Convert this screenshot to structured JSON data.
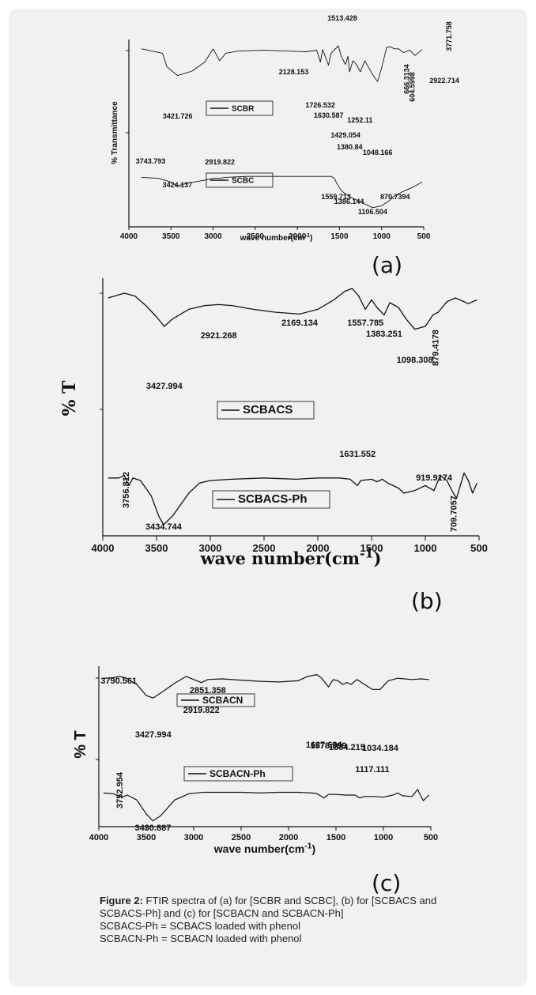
{
  "colors": {
    "frame": "#f0f1f2",
    "line": "#111111"
  },
  "chart_data": [
    {
      "type": "line",
      "panel_label": "(a)",
      "xlabel": "wave number(cm",
      "xlabel_sup": "-1",
      "xlabel_end": ")",
      "ylabel": "% Transmittance",
      "xlim": [
        4000,
        500
      ],
      "xticks": [
        "4000",
        "3500",
        "3000",
        "2500",
        "2000",
        "1500",
        "1000",
        "500"
      ],
      "series": [
        {
          "name": "SCBR",
          "points": [
            [
              3850,
              0.04
            ],
            [
              3600,
              0.1
            ],
            [
              3550,
              0.28
            ],
            [
              3421.7,
              0.4
            ],
            [
              3250,
              0.34
            ],
            [
              3100,
              0.22
            ],
            [
              3000,
              0.04
            ],
            [
              2922.7,
              0.2
            ],
            [
              2850,
              0.1
            ],
            [
              2700,
              0.07
            ],
            [
              2400,
              0.06
            ],
            [
              2128,
              0.07
            ],
            [
              1900,
              0.08
            ],
            [
              1770,
              0.06
            ],
            [
              1726.5,
              0.22
            ],
            [
              1700,
              0.05
            ],
            [
              1630.6,
              0.26
            ],
            [
              1600,
              0.1
            ],
            [
              1513,
              0.0
            ],
            [
              1480,
              0.14
            ],
            [
              1429.1,
              0.25
            ],
            [
              1400,
              0.14
            ],
            [
              1380.8,
              0.35
            ],
            [
              1340,
              0.2
            ],
            [
              1300,
              0.25
            ],
            [
              1252.1,
              0.35
            ],
            [
              1200,
              0.2
            ],
            [
              1150,
              0.3
            ],
            [
              1100,
              0.4
            ],
            [
              1048.2,
              0.48
            ],
            [
              1000,
              0.3
            ],
            [
              940,
              0.02
            ],
            [
              900,
              0.01
            ],
            [
              850,
              0.04
            ],
            [
              800,
              0.04
            ],
            [
              740,
              0.09
            ],
            [
              666,
              0.06
            ],
            [
              604.6,
              0.13
            ],
            [
              520,
              0.05
            ]
          ]
        },
        {
          "name": "SCBC",
          "points": [
            [
              3850,
              0.52
            ],
            [
              3650,
              0.53
            ],
            [
              3500,
              0.57
            ],
            [
              3424,
              0.61
            ],
            [
              3300,
              0.58
            ],
            [
              3100,
              0.55
            ],
            [
              2990,
              0.53
            ],
            [
              2919.8,
              0.53
            ],
            [
              2850,
              0.52
            ],
            [
              2600,
              0.51
            ],
            [
              2200,
              0.51
            ],
            [
              1800,
              0.51
            ],
            [
              1600,
              0.51
            ],
            [
              1559.7,
              0.53
            ],
            [
              1540,
              0.57
            ],
            [
              1480,
              0.66
            ],
            [
              1420,
              0.7
            ],
            [
              1386,
              0.72
            ],
            [
              1250,
              0.78
            ],
            [
              1106.5,
              0.84
            ],
            [
              1000,
              0.82
            ],
            [
              900,
              0.76
            ],
            [
              870.7,
              0.73
            ],
            [
              750,
              0.67
            ],
            [
              620,
              0.62
            ],
            [
              520,
              0.57
            ]
          ]
        }
      ],
      "annotations": [
        "3771.758",
        "2922.714",
        "2128.153",
        "1513.428",
        "1726.532",
        "1630.587",
        "1429.054",
        "1380.84",
        "1252.11",
        "1048.166",
        "666.3134",
        "604.5998",
        "3421.726",
        "3743.793",
        "3424.137",
        "2919.822",
        "1559.713",
        "1386.144",
        "1106.504",
        "870.7394"
      ]
    },
    {
      "type": "line",
      "panel_label": "(b)",
      "xlabel": "wave number(cm",
      "xlabel_sup": "-1",
      "xlabel_end": ")",
      "ylabel": "% T",
      "xlim": [
        4000,
        500
      ],
      "xticks": [
        "4000",
        "3500",
        "3000",
        "2500",
        "2000",
        "1500",
        "1000",
        "500"
      ],
      "series": [
        {
          "name": "SCBACS",
          "points": [
            [
              3950,
              0.1
            ],
            [
              3800,
              0.05
            ],
            [
              3700,
              0.08
            ],
            [
              3600,
              0.18
            ],
            [
              3500,
              0.3
            ],
            [
              3428,
              0.4
            ],
            [
              3350,
              0.32
            ],
            [
              3200,
              0.22
            ],
            [
              3050,
              0.18
            ],
            [
              2921.3,
              0.17
            ],
            [
              2800,
              0.18
            ],
            [
              2600,
              0.22
            ],
            [
              2400,
              0.25
            ],
            [
              2169.1,
              0.27
            ],
            [
              2000,
              0.22
            ],
            [
              1850,
              0.12
            ],
            [
              1750,
              0.03
            ],
            [
              1680,
              0.0
            ],
            [
              1620,
              0.08
            ],
            [
              1557.8,
              0.22
            ],
            [
              1500,
              0.12
            ],
            [
              1450,
              0.2
            ],
            [
              1383.3,
              0.28
            ],
            [
              1330,
              0.15
            ],
            [
              1250,
              0.2
            ],
            [
              1180,
              0.32
            ],
            [
              1098.3,
              0.43
            ],
            [
              1000,
              0.4
            ],
            [
              930,
              0.28
            ],
            [
              879.4,
              0.25
            ],
            [
              800,
              0.14
            ],
            [
              720,
              0.1
            ],
            [
              600,
              0.16
            ],
            [
              520,
              0.12
            ]
          ]
        },
        {
          "name": "SCBACS-Ph",
          "points": [
            [
              3950,
              0.58
            ],
            [
              3850,
              0.58
            ],
            [
              3800,
              0.56
            ],
            [
              3756.8,
              0.64
            ],
            [
              3720,
              0.58
            ],
            [
              3650,
              0.6
            ],
            [
              3550,
              0.72
            ],
            [
              3480,
              0.88
            ],
            [
              3434.7,
              0.95
            ],
            [
              3350,
              0.88
            ],
            [
              3200,
              0.7
            ],
            [
              3100,
              0.62
            ],
            [
              3000,
              0.6
            ],
            [
              2800,
              0.59
            ],
            [
              2500,
              0.58
            ],
            [
              2200,
              0.59
            ],
            [
              2000,
              0.58
            ],
            [
              1800,
              0.58
            ],
            [
              1700,
              0.59
            ],
            [
              1631.6,
              0.64
            ],
            [
              1600,
              0.6
            ],
            [
              1500,
              0.59
            ],
            [
              1450,
              0.61
            ],
            [
              1400,
              0.59
            ],
            [
              1350,
              0.62
            ],
            [
              1300,
              0.64
            ],
            [
              1250,
              0.66
            ],
            [
              1200,
              0.7
            ],
            [
              1100,
              0.68
            ],
            [
              1000,
              0.64
            ],
            [
              919.9,
              0.68
            ],
            [
              860,
              0.56
            ],
            [
              800,
              0.6
            ],
            [
              740,
              0.7
            ],
            [
              709.7,
              0.74
            ],
            [
              640,
              0.54
            ],
            [
              600,
              0.6
            ],
            [
              560,
              0.7
            ],
            [
              520,
              0.62
            ]
          ]
        }
      ],
      "annotations": [
        "3427.994",
        "2921.268",
        "2169.134",
        "1557.785",
        "1383.251",
        "1098.308",
        "879.4178",
        "3756.812",
        "3434.744",
        "1631.552",
        "919.9174",
        "709.7057"
      ]
    },
    {
      "type": "line",
      "panel_label": "(c)",
      "xlabel": "wave number(cm",
      "xlabel_sup": "-1",
      "xlabel_end": ")",
      "ylabel": "% T",
      "xlim": [
        4000,
        500
      ],
      "xticks": [
        "4000",
        "3500",
        "3000",
        "2500",
        "2000",
        "1500",
        "1000",
        "500"
      ],
      "series": [
        {
          "name": "SCBACN",
          "points": [
            [
              3950,
              0.08
            ],
            [
              3850,
              0.07
            ],
            [
              3790.6,
              0.05
            ],
            [
              3720,
              0.07
            ],
            [
              3600,
              0.18
            ],
            [
              3500,
              0.36
            ],
            [
              3428,
              0.4
            ],
            [
              3350,
              0.32
            ],
            [
              3200,
              0.16
            ],
            [
              3080,
              0.05
            ],
            [
              3000,
              0.1
            ],
            [
              2919.8,
              0.15
            ],
            [
              2851.4,
              0.1
            ],
            [
              2700,
              0.09
            ],
            [
              2500,
              0.11
            ],
            [
              2300,
              0.13
            ],
            [
              2100,
              0.14
            ],
            [
              1900,
              0.12
            ],
            [
              1800,
              0.05
            ],
            [
              1700,
              0.02
            ],
            [
              1650,
              0.08
            ],
            [
              1579,
              0.22
            ],
            [
              1530,
              0.1
            ],
            [
              1480,
              0.12
            ],
            [
              1430,
              0.18
            ],
            [
              1384.2,
              0.15
            ],
            [
              1340,
              0.18
            ],
            [
              1280,
              0.1
            ],
            [
              1200,
              0.18
            ],
            [
              1117.1,
              0.26
            ],
            [
              1034.2,
              0.26
            ],
            [
              950,
              0.12
            ],
            [
              850,
              0.08
            ],
            [
              700,
              0.1
            ],
            [
              600,
              0.09
            ],
            [
              520,
              0.1
            ]
          ]
        },
        {
          "name": "SCBACN-Ph",
          "points": [
            [
              3950,
              0.55
            ],
            [
              3850,
              0.56
            ],
            [
              3752.9,
              0.61
            ],
            [
              3700,
              0.58
            ],
            [
              3600,
              0.65
            ],
            [
              3500,
              0.85
            ],
            [
              3430.9,
              0.95
            ],
            [
              3350,
              0.88
            ],
            [
              3200,
              0.65
            ],
            [
              3050,
              0.56
            ],
            [
              2900,
              0.54
            ],
            [
              2700,
              0.54
            ],
            [
              2500,
              0.54
            ],
            [
              2300,
              0.55
            ],
            [
              2100,
              0.54
            ],
            [
              1900,
              0.54
            ],
            [
              1750,
              0.55
            ],
            [
              1700,
              0.56
            ],
            [
              1627.7,
              0.62
            ],
            [
              1580,
              0.57
            ],
            [
              1500,
              0.57
            ],
            [
              1400,
              0.58
            ],
            [
              1300,
              0.58
            ],
            [
              1250,
              0.62
            ],
            [
              1200,
              0.6
            ],
            [
              1100,
              0.6
            ],
            [
              1000,
              0.61
            ],
            [
              900,
              0.58
            ],
            [
              850,
              0.55
            ],
            [
              800,
              0.59
            ],
            [
              700,
              0.6
            ],
            [
              640,
              0.5
            ],
            [
              580,
              0.66
            ],
            [
              520,
              0.58
            ]
          ]
        }
      ],
      "annotations": [
        "3790.561",
        "2919.822",
        "2851.358",
        "1578.999",
        "1384.215",
        "1117.111",
        "1034.184",
        "3427.994",
        "3752.954",
        "1627.694",
        "3430.887"
      ]
    }
  ],
  "caption": {
    "bold": "Figure 2:",
    "line1": " FTIR spectra of (a) for [SCBR and SCBC], (b) for [SCBACS and",
    "line2": "SCBACS-Ph] and (c) for [SCBACN and SCBACN-Ph]",
    "line3": "SCBACS-Ph = SCBACS loaded with phenol",
    "line4": "SCBACN-Ph = SCBACN loaded with phenol"
  }
}
